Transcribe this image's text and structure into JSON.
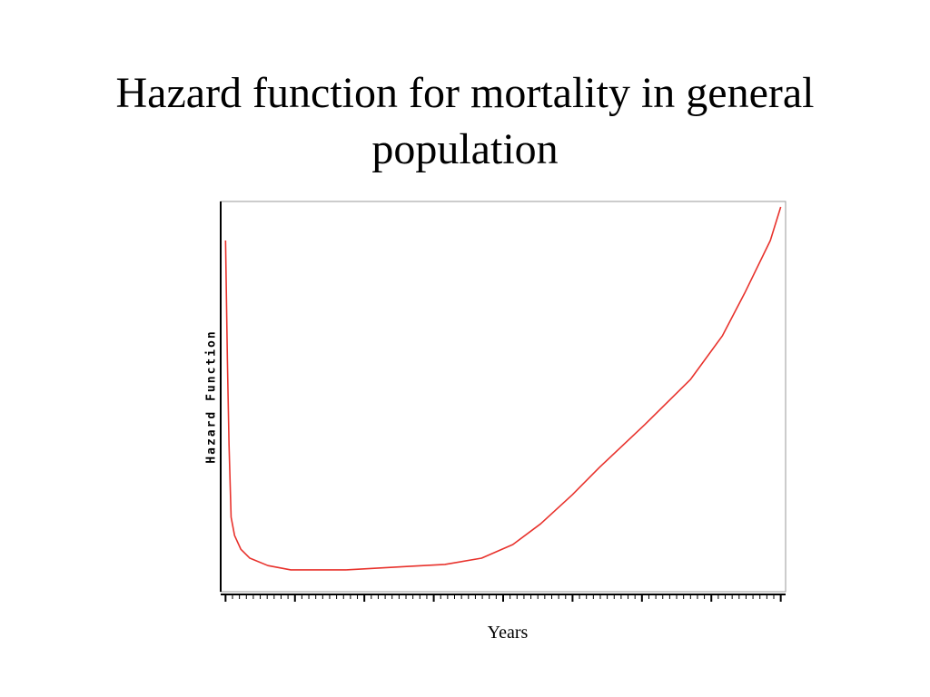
{
  "chart_data": {
    "type": "line",
    "title": "Hazard function for mortality in general population",
    "xlabel": "Years",
    "ylabel": "Hazard Function",
    "x": [
      0,
      0.26,
      0.5,
      0.8,
      1.3,
      2.2,
      3.5,
      6.1,
      9.4,
      17.3,
      26.4,
      31.6,
      36.9,
      41.4,
      45.4,
      50,
      53.9,
      60.4,
      67,
      71.6,
      74.8,
      78.5,
      80
    ],
    "series": [
      {
        "name": "Hazard Function",
        "color": "#e8322c",
        "values": [
          90,
          59.8,
          37.7,
          19.1,
          14.4,
          10.9,
          8.6,
          6.7,
          5.6,
          5.6,
          6.5,
          7.0,
          8.6,
          12.1,
          17.4,
          24.9,
          31.9,
          42.8,
          54.4,
          65.6,
          76.5,
          90,
          98.6
        ]
      }
    ],
    "xlim": [
      -0.7,
      80.7
    ],
    "ylim": [
      0,
      100
    ],
    "xticks": [
      0,
      1,
      2,
      3,
      4,
      5,
      6,
      7,
      8,
      9,
      10,
      11,
      12,
      13,
      14,
      15,
      16,
      17,
      18,
      19,
      20,
      21,
      22,
      23,
      24,
      25,
      26,
      27,
      28,
      29,
      30,
      31,
      32,
      33,
      34,
      35,
      36,
      37,
      38,
      39,
      40,
      41,
      42,
      43,
      44,
      45,
      46,
      47,
      48,
      49,
      50,
      51,
      52,
      53,
      54,
      55,
      56,
      57,
      58,
      59,
      60,
      61,
      62,
      63,
      64,
      65,
      66,
      67,
      68,
      69,
      70,
      71,
      72,
      73,
      74,
      75,
      76,
      77,
      78,
      79,
      80
    ]
  }
}
